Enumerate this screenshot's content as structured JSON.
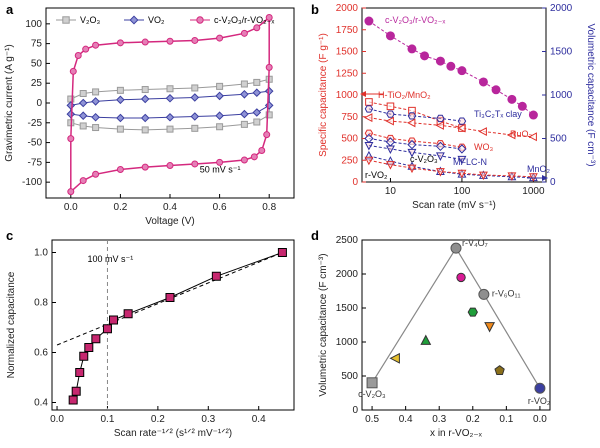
{
  "figure": {
    "panel_labels": [
      "a",
      "b",
      "c",
      "d"
    ]
  },
  "chart_data": [
    {
      "panel": "a",
      "type": "line",
      "xlabel": "Voltage (V)",
      "ylabel": "Gravimetric current (A g⁻¹)",
      "xlim": [
        -0.1,
        0.9
      ],
      "ylim": [
        -120,
        120
      ],
      "xticks": [
        "0.0",
        "0.2",
        "0.4",
        "0.6",
        "0.8"
      ],
      "yticks": [
        "-100",
        "-75",
        "-50",
        "-25",
        "0",
        "25",
        "50",
        "75",
        "100"
      ],
      "annotation": "50 mV s⁻¹",
      "legend_position": "top",
      "series": [
        {
          "name": "V₂O₃",
          "color": "#9a9a9a",
          "marker": "square",
          "upper": [
            [
              0.0,
              5
            ],
            [
              0.05,
              12
            ],
            [
              0.1,
              14
            ],
            [
              0.2,
              16
            ],
            [
              0.3,
              17
            ],
            [
              0.4,
              18
            ],
            [
              0.5,
              19
            ],
            [
              0.6,
              21
            ],
            [
              0.7,
              24
            ],
            [
              0.75,
              26
            ],
            [
              0.8,
              30
            ]
          ],
          "lower": [
            [
              0.8,
              -15
            ],
            [
              0.75,
              -24
            ],
            [
              0.7,
              -27
            ],
            [
              0.6,
              -30
            ],
            [
              0.5,
              -32
            ],
            [
              0.4,
              -33
            ],
            [
              0.3,
              -34
            ],
            [
              0.2,
              -33
            ],
            [
              0.1,
              -31
            ],
            [
              0.05,
              -29
            ],
            [
              0.0,
              -25
            ]
          ]
        },
        {
          "name": "VO₂",
          "color": "#3b3fa0",
          "marker": "diamond",
          "upper": [
            [
              0.0,
              -3
            ],
            [
              0.05,
              0
            ],
            [
              0.1,
              2
            ],
            [
              0.2,
              4
            ],
            [
              0.3,
              5
            ],
            [
              0.4,
              6
            ],
            [
              0.5,
              7
            ],
            [
              0.6,
              9
            ],
            [
              0.7,
              11
            ],
            [
              0.75,
              13
            ],
            [
              0.8,
              15
            ]
          ],
          "lower": [
            [
              0.8,
              -3
            ],
            [
              0.75,
              -12
            ],
            [
              0.7,
              -14
            ],
            [
              0.6,
              -16
            ],
            [
              0.5,
              -17
            ],
            [
              0.4,
              -18
            ],
            [
              0.3,
              -19
            ],
            [
              0.2,
              -19
            ],
            [
              0.1,
              -18
            ],
            [
              0.05,
              -16
            ],
            [
              0.0,
              -14
            ]
          ]
        },
        {
          "name": "c-V₂O₃/r-VO₂₋ₓ",
          "color": "#d4287e",
          "marker": "circle",
          "upper": [
            [
              0.0,
              -45
            ],
            [
              0.01,
              40
            ],
            [
              0.03,
              60
            ],
            [
              0.06,
              68
            ],
            [
              0.1,
              73
            ],
            [
              0.2,
              76
            ],
            [
              0.3,
              77
            ],
            [
              0.4,
              78
            ],
            [
              0.5,
              79
            ],
            [
              0.6,
              82
            ],
            [
              0.7,
              88
            ],
            [
              0.75,
              95
            ],
            [
              0.8,
              108
            ]
          ],
          "lower": [
            [
              0.8,
              45
            ],
            [
              0.79,
              -40
            ],
            [
              0.77,
              -60
            ],
            [
              0.74,
              -68
            ],
            [
              0.7,
              -72
            ],
            [
              0.6,
              -75
            ],
            [
              0.5,
              -77
            ],
            [
              0.4,
              -79
            ],
            [
              0.3,
              -81
            ],
            [
              0.2,
              -84
            ],
            [
              0.1,
              -90
            ],
            [
              0.05,
              -98
            ],
            [
              0.0,
              -112
            ]
          ]
        }
      ]
    },
    {
      "panel": "b",
      "type": "scatter",
      "xlabel": "Scan rate (mV s⁻¹)",
      "ylabel_left": "Specific capacitance (F g⁻¹)",
      "ylabel_right": "Volumetric capacitance (F cm⁻³)",
      "xscale": "log",
      "xlim": [
        4,
        1500
      ],
      "ylim_left": [
        0,
        2000
      ],
      "ylim_right": [
        0,
        2000
      ],
      "xticks": [
        "10",
        "100",
        "1000"
      ],
      "yticks_left": [
        "0",
        "250",
        "500",
        "750",
        "1000",
        "1250",
        "1500",
        "1750",
        "2000"
      ],
      "yticks_right": [
        "0",
        "500",
        "1000",
        "1500",
        "2000"
      ],
      "left_axis_color": "#e0312b",
      "right_axis_color": "#2e2e9e",
      "series": [
        {
          "name": "c-V₂O₃/r-VO₂₋ₓ",
          "color": "#b8269c",
          "marker": "circle",
          "filled": true,
          "x": [
            5,
            10,
            20,
            30,
            50,
            70,
            100,
            200,
            300,
            500,
            700,
            1000
          ],
          "y": [
            1850,
            1680,
            1530,
            1450,
            1390,
            1330,
            1280,
            1150,
            1060,
            950,
            870,
            770
          ]
        },
        {
          "name": "H-TiO₂/MnO₂",
          "color": "#e0312b",
          "marker": "square",
          "x": [
            5,
            10,
            20,
            50,
            100
          ],
          "y": [
            920,
            870,
            820,
            700,
            620
          ]
        },
        {
          "name": "Ti₃C₂Tₓ clay",
          "color": "#2e2e9e",
          "marker": "hexagon",
          "x": [
            5,
            10,
            20,
            50,
            100
          ],
          "y": [
            840,
            780,
            760,
            730,
            700
          ]
        },
        {
          "name": "RuO₂",
          "color": "#e0312b",
          "marker": "triangle-left",
          "x": [
            5,
            10,
            20,
            50,
            100,
            200,
            500,
            1000
          ],
          "y": [
            740,
            700,
            680,
            650,
            620,
            580,
            540,
            520
          ]
        },
        {
          "name": "WO₃",
          "color": "#e0312b",
          "marker": "hexagon",
          "x": [
            5,
            10,
            20,
            50,
            100
          ],
          "y": [
            560,
            500,
            470,
            440,
            400
          ]
        },
        {
          "name": "c-V₂O₃",
          "color": "#2e2e9e",
          "marker": "diamond",
          "x": [
            5,
            10,
            20,
            50,
            100
          ],
          "y": [
            500,
            460,
            430,
            410,
            380
          ]
        },
        {
          "name": "MnO₂",
          "color": "#2e2e9e",
          "marker": "triangle-down",
          "x": [
            5,
            10,
            20,
            50,
            100
          ],
          "y": [
            420,
            380,
            340,
            300,
            260
          ]
        },
        {
          "name": "MFLC-N",
          "color": "#2e2e9e",
          "marker": "triangle-up",
          "x": [
            5,
            10,
            20,
            50,
            100,
            200,
            500,
            1000
          ],
          "y": [
            300,
            240,
            180,
            120,
            90,
            75,
            60,
            50
          ]
        },
        {
          "name": "r-VO₂",
          "color": "#e0312b",
          "marker": "triangle-down",
          "x": [
            5,
            10,
            20,
            50,
            100,
            200,
            500,
            1000
          ],
          "y": [
            250,
            200,
            160,
            120,
            100,
            80,
            70,
            60
          ]
        }
      ],
      "labels": [
        "c-V₂O₃/r-VO₂₋ₓ",
        "H-TiO₂/MnO₂",
        "Ti₃C₂Tₓ clay",
        "RuO₂",
        "WO₃",
        "c-V₂O₃",
        "MFLC-N",
        "MnO₂",
        "r-VO₂"
      ]
    },
    {
      "panel": "c",
      "type": "scatter",
      "xlabel": "Scan rate⁻¹ᐟ² (s¹ᐟ² mV⁻¹ᐟ²)",
      "ylabel": "Normalized capacitance",
      "xlim": [
        -0.01,
        0.47
      ],
      "ylim": [
        0.37,
        1.05
      ],
      "xticks": [
        "0.0",
        "0.1",
        "0.2",
        "0.3",
        "0.4"
      ],
      "yticks": [
        "0.4",
        "0.6",
        "0.8",
        "1.0"
      ],
      "annotation": "100 mV s⁻¹",
      "vline_x": 0.1,
      "color": "#c7276f",
      "x": [
        0.032,
        0.038,
        0.045,
        0.053,
        0.063,
        0.077,
        0.1,
        0.112,
        0.141,
        0.224,
        0.316,
        0.447
      ],
      "y": [
        0.41,
        0.445,
        0.52,
        0.585,
        0.62,
        0.655,
        0.695,
        0.73,
        0.755,
        0.82,
        0.905,
        1.0
      ],
      "fit_line": [
        [
          0.0,
          0.63
        ],
        [
          0.447,
          1.0
        ]
      ]
    },
    {
      "panel": "d",
      "type": "scatter",
      "xlabel": "x in r-VO₂₋ₓ",
      "ylabel": "Volumetric capacitance (F cm⁻³)",
      "xlim": [
        0.53,
        -0.03
      ],
      "ylim": [
        0,
        2500
      ],
      "xticks": [
        "0.5",
        "0.4",
        "0.3",
        "0.2",
        "0.1",
        "0.0"
      ],
      "yticks": [
        "0",
        "500",
        "1000",
        "1500",
        "2000",
        "2500"
      ],
      "line": [
        [
          0.5,
          400
        ],
        [
          0.25,
          2380
        ],
        [
          0.167,
          1700
        ],
        [
          0.0,
          320
        ]
      ],
      "points": [
        {
          "label": "c-V₂O₃",
          "x": 0.5,
          "y": 400,
          "color": "#9a9a9a",
          "marker": "square"
        },
        {
          "label": "",
          "x": 0.43,
          "y": 760,
          "color": "#e6c02f",
          "marker": "triangle-left"
        },
        {
          "label": "",
          "x": 0.34,
          "y": 1020,
          "color": "#1f9e3a",
          "marker": "triangle-up"
        },
        {
          "label": "r-V₄O₇",
          "x": 0.25,
          "y": 2380,
          "color": "#8f8f8f",
          "marker": "circle"
        },
        {
          "label": "",
          "x": 0.235,
          "y": 1950,
          "color": "#d91a95",
          "marker": "circle"
        },
        {
          "label": "",
          "x": 0.2,
          "y": 1440,
          "color": "#1f9e3a",
          "marker": "hexagon"
        },
        {
          "label": "r-V₆O₁₁",
          "x": 0.167,
          "y": 1700,
          "color": "#8f8f8f",
          "marker": "circle"
        },
        {
          "label": "",
          "x": 0.15,
          "y": 1230,
          "color": "#f08a1c",
          "marker": "triangle-down"
        },
        {
          "label": "",
          "x": 0.12,
          "y": 580,
          "color": "#8a6f1a",
          "marker": "pentagon"
        },
        {
          "label": "r-VO₂",
          "x": 0.0,
          "y": 320,
          "color": "#3b3fa0",
          "marker": "circle"
        }
      ]
    }
  ]
}
